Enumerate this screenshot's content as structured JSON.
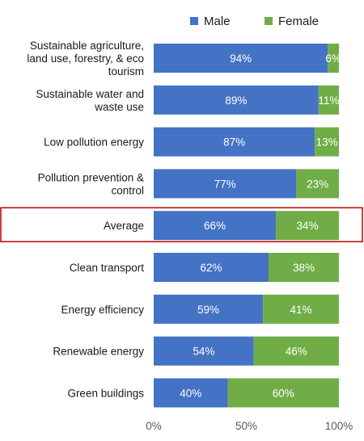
{
  "chart_data": {
    "type": "bar",
    "orientation": "horizontal",
    "stacked": true,
    "percent_stacked": true,
    "categories": [
      [
        "Sustainable agriculture,",
        "land use, forestry, & eco",
        "tourism"
      ],
      [
        "Sustainable water and",
        "waste use"
      ],
      [
        "Low pollution energy"
      ],
      [
        "Pollution prevention &",
        "control"
      ],
      [
        "Average"
      ],
      [
        "Clean transport"
      ],
      [
        "Energy efficiency"
      ],
      [
        "Renewable energy"
      ],
      [
        "Green buildings"
      ]
    ],
    "series": [
      {
        "name": "Male",
        "color": "#4472C4",
        "values": [
          94,
          89,
          87,
          77,
          66,
          62,
          59,
          54,
          40
        ],
        "labels": [
          "94%",
          "89%",
          "87%",
          "77%",
          "66%",
          "62%",
          "59%",
          "54%",
          "40%"
        ]
      },
      {
        "name": "Female",
        "color": "#70AD47",
        "values": [
          6,
          11,
          13,
          23,
          34,
          38,
          41,
          46,
          60
        ],
        "labels": [
          "6%",
          "11%",
          "13%",
          "23%",
          "34%",
          "38%",
          "41%",
          "46%",
          "60%"
        ]
      }
    ],
    "xlim": [
      0,
      100
    ],
    "xticks": [
      "0%",
      "50%",
      "100%"
    ],
    "legend_position": "top",
    "highlight_category_index": 4,
    "highlight_color": "#C00000",
    "grid": false
  }
}
